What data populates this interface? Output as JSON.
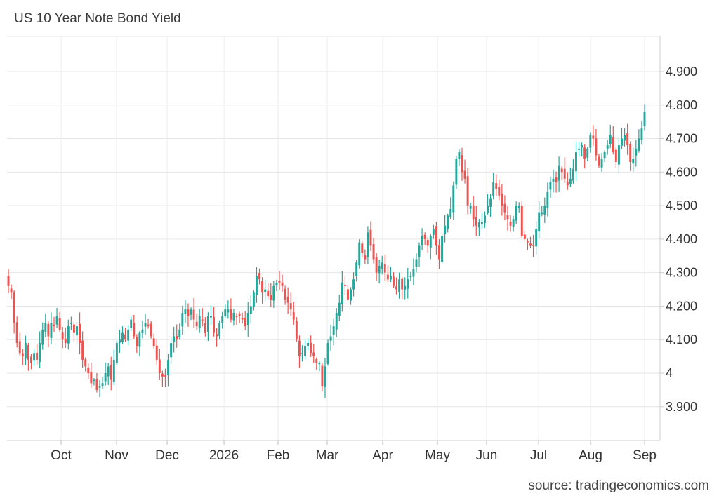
{
  "chart_data": {
    "type": "candlestick",
    "title": "US 10 Year Note Bond Yield",
    "source": "source: tradingeconomics.com",
    "xlabel": "",
    "ylabel": "",
    "ylim": [
      3.8,
      5.0
    ],
    "y_ticks": [
      {
        "value": 3.9,
        "label": "3.900"
      },
      {
        "value": 4.0,
        "label": "4"
      },
      {
        "value": 4.1,
        "label": "4.100"
      },
      {
        "value": 4.2,
        "label": "4.200"
      },
      {
        "value": 4.3,
        "label": "4.300"
      },
      {
        "value": 4.4,
        "label": "4.400"
      },
      {
        "value": 4.5,
        "label": "4.500"
      },
      {
        "value": 4.6,
        "label": "4.600"
      },
      {
        "value": 4.7,
        "label": "4.700"
      },
      {
        "value": 4.8,
        "label": "4.800"
      },
      {
        "value": 4.9,
        "label": "4.900"
      }
    ],
    "x_ticks": [
      "Oct",
      "Nov",
      "Dec",
      "2026",
      "Feb",
      "Mar",
      "Apr",
      "May",
      "Jun",
      "Jul",
      "Aug",
      "Sep"
    ],
    "grid": true,
    "colors": {
      "up": "#26a69a",
      "down": "#ef5350"
    },
    "closes": [
      4.26,
      4.24,
      4.15,
      4.09,
      4.06,
      4.05,
      4.09,
      4.04,
      4.03,
      4.06,
      4.04,
      4.09,
      4.13,
      4.15,
      4.11,
      4.15,
      4.14,
      4.17,
      4.13,
      4.1,
      4.09,
      4.14,
      4.15,
      4.12,
      4.14,
      4.09,
      4.04,
      4.02,
      4.0,
      3.97,
      3.98,
      3.95,
      3.96,
      3.97,
      4.0,
      4.02,
      3.98,
      4.04,
      4.09,
      4.1,
      4.12,
      4.1,
      4.13,
      4.16,
      4.11,
      4.08,
      4.12,
      4.13,
      4.15,
      4.14,
      4.11,
      4.08,
      4.04,
      4.0,
      3.99,
      3.99,
      4.04,
      4.09,
      4.11,
      4.1,
      4.13,
      4.18,
      4.19,
      4.17,
      4.19,
      4.16,
      4.14,
      4.17,
      4.16,
      4.12,
      4.17,
      4.17,
      4.12,
      4.11,
      4.15,
      4.17,
      4.19,
      4.19,
      4.16,
      4.18,
      4.17,
      4.17,
      4.16,
      4.14,
      4.18,
      4.2,
      4.24,
      4.29,
      4.28,
      4.24,
      4.25,
      4.23,
      4.22,
      4.26,
      4.27,
      4.27,
      4.26,
      4.22,
      4.21,
      4.19,
      4.16,
      4.1,
      4.05,
      4.06,
      4.08,
      4.09,
      4.06,
      4.05,
      4.03,
      4.03,
      3.96,
      4.02,
      4.09,
      4.11,
      4.14,
      4.18,
      4.21,
      4.27,
      4.26,
      4.22,
      4.25,
      4.28,
      4.33,
      4.39,
      4.36,
      4.34,
      4.42,
      4.38,
      4.34,
      4.3,
      4.32,
      4.33,
      4.3,
      4.28,
      4.29,
      4.26,
      4.25,
      4.28,
      4.25,
      4.26,
      4.28,
      4.29,
      4.31,
      4.34,
      4.38,
      4.41,
      4.4,
      4.38,
      4.41,
      4.43,
      4.38,
      4.34,
      4.41,
      4.44,
      4.47,
      4.49,
      4.56,
      4.64,
      4.66,
      4.6,
      4.58,
      4.5,
      4.5,
      4.46,
      4.44,
      4.45,
      4.45,
      4.47,
      4.5,
      4.52,
      4.57,
      4.55,
      4.53,
      4.5,
      4.48,
      4.46,
      4.44,
      4.46,
      4.5,
      4.5,
      4.41,
      4.4,
      4.39,
      4.38,
      4.38,
      4.43,
      4.48,
      4.48,
      4.5,
      4.54,
      4.57,
      4.58,
      4.57,
      4.62,
      4.6,
      4.58,
      4.56,
      4.58,
      4.61,
      4.66,
      4.67,
      4.68,
      4.64,
      4.67,
      4.71,
      4.7,
      4.65,
      4.62,
      4.64,
      4.66,
      4.68,
      4.71,
      4.66,
      4.63,
      4.68,
      4.7,
      4.71,
      4.68,
      4.63,
      4.64,
      4.67,
      4.7,
      4.73,
      4.78
    ]
  }
}
